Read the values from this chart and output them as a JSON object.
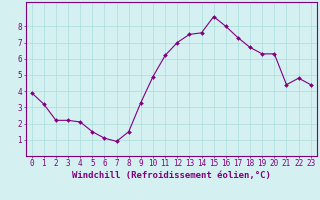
{
  "x": [
    0,
    1,
    2,
    3,
    4,
    5,
    6,
    7,
    8,
    9,
    10,
    11,
    12,
    13,
    14,
    15,
    16,
    17,
    18,
    19,
    20,
    21,
    22,
    23
  ],
  "y": [
    3.9,
    3.2,
    2.2,
    2.2,
    2.1,
    1.5,
    1.1,
    0.9,
    1.5,
    3.3,
    4.9,
    6.2,
    7.0,
    7.5,
    7.6,
    8.6,
    8.0,
    7.3,
    6.7,
    6.3,
    6.3,
    4.4,
    4.8,
    4.4
  ],
  "line_color": "#800080",
  "marker": "D",
  "marker_size": 2.0,
  "bg_color": "#d4f0f0",
  "grid_color": "#aadddd",
  "xlabel": "Windchill (Refroidissement éolien,°C)",
  "xlim": [
    -0.5,
    23.5
  ],
  "ylim": [
    0,
    9.5
  ],
  "xticks": [
    0,
    1,
    2,
    3,
    4,
    5,
    6,
    7,
    8,
    9,
    10,
    11,
    12,
    13,
    14,
    15,
    16,
    17,
    18,
    19,
    20,
    21,
    22,
    23
  ],
  "yticks": [
    1,
    2,
    3,
    4,
    5,
    6,
    7,
    8
  ],
  "tick_color": "#800080",
  "label_color": "#800080",
  "spine_color": "#800080",
  "xlabel_fontsize": 6.5,
  "tick_fontsize": 5.5
}
